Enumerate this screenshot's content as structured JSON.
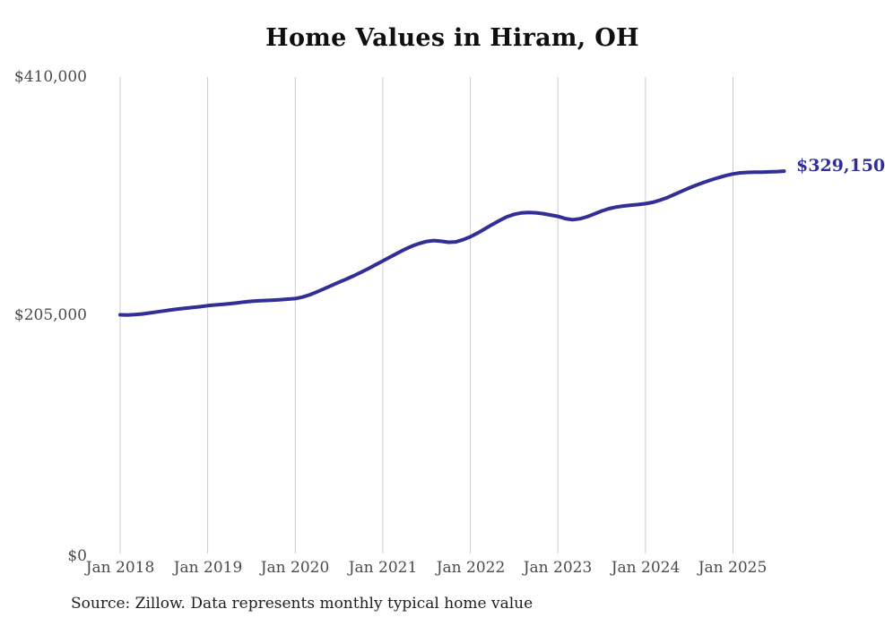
{
  "colors": {
    "line": "#312e96",
    "grid": "#cccccc",
    "tick_text": "#4a4a4a",
    "title_text": "#0f0f0f",
    "final_label_text": "#312e96",
    "source_text": "#1f1f1f",
    "background": "#ffffff"
  },
  "chart_data": {
    "type": "line",
    "title": "Home Values in Hiram, OH",
    "xlabel": "",
    "ylabel": "",
    "source_note": "Source: Zillow. Data represents monthly typical home value",
    "x_start_month": "2018-01",
    "x_end_month": "2025-08",
    "frequency": "monthly",
    "x_tick_labels": [
      "Jan 2018",
      "Jan 2019",
      "Jan 2020",
      "Jan 2021",
      "Jan 2022",
      "Jan 2023",
      "Jan 2024",
      "Jan 2025"
    ],
    "x_tick_month_indices": [
      0,
      12,
      24,
      36,
      48,
      60,
      72,
      84
    ],
    "y_tick_labels": [
      "$410,000",
      "$205,000",
      "$0"
    ],
    "y_tick_values": [
      410000,
      205000,
      0
    ],
    "ylim": [
      0,
      410000
    ],
    "grid": "vertical-only",
    "legend": "none",
    "final_value": 329150,
    "final_value_label": "$329,150",
    "series": [
      {
        "name": "Typical home value (USD)",
        "start": "2018-01",
        "values": [
          205800,
          205600,
          205900,
          206500,
          207300,
          208200,
          209100,
          210000,
          210800,
          211500,
          212100,
          212800,
          213600,
          214200,
          214700,
          215300,
          216000,
          216800,
          217400,
          217800,
          218100,
          218400,
          218800,
          219200,
          219700,
          221000,
          223000,
          225500,
          228200,
          231000,
          233800,
          236400,
          239200,
          242200,
          245400,
          248700,
          252000,
          255400,
          258700,
          261900,
          264800,
          267000,
          268800,
          269500,
          268900,
          268100,
          268400,
          270200,
          272800,
          276000,
          279600,
          283300,
          286800,
          289900,
          292100,
          293300,
          293600,
          293400,
          292600,
          291500,
          290300,
          288400,
          287500,
          288200,
          290000,
          292400,
          294900,
          296900,
          298300,
          299200,
          299900,
          300500,
          301200,
          302400,
          304200,
          306500,
          309200,
          312000,
          314700,
          317200,
          319500,
          321600,
          323500,
          325300,
          326800,
          327700,
          328100,
          328200,
          328300,
          328500,
          328800,
          329150
        ]
      }
    ]
  }
}
